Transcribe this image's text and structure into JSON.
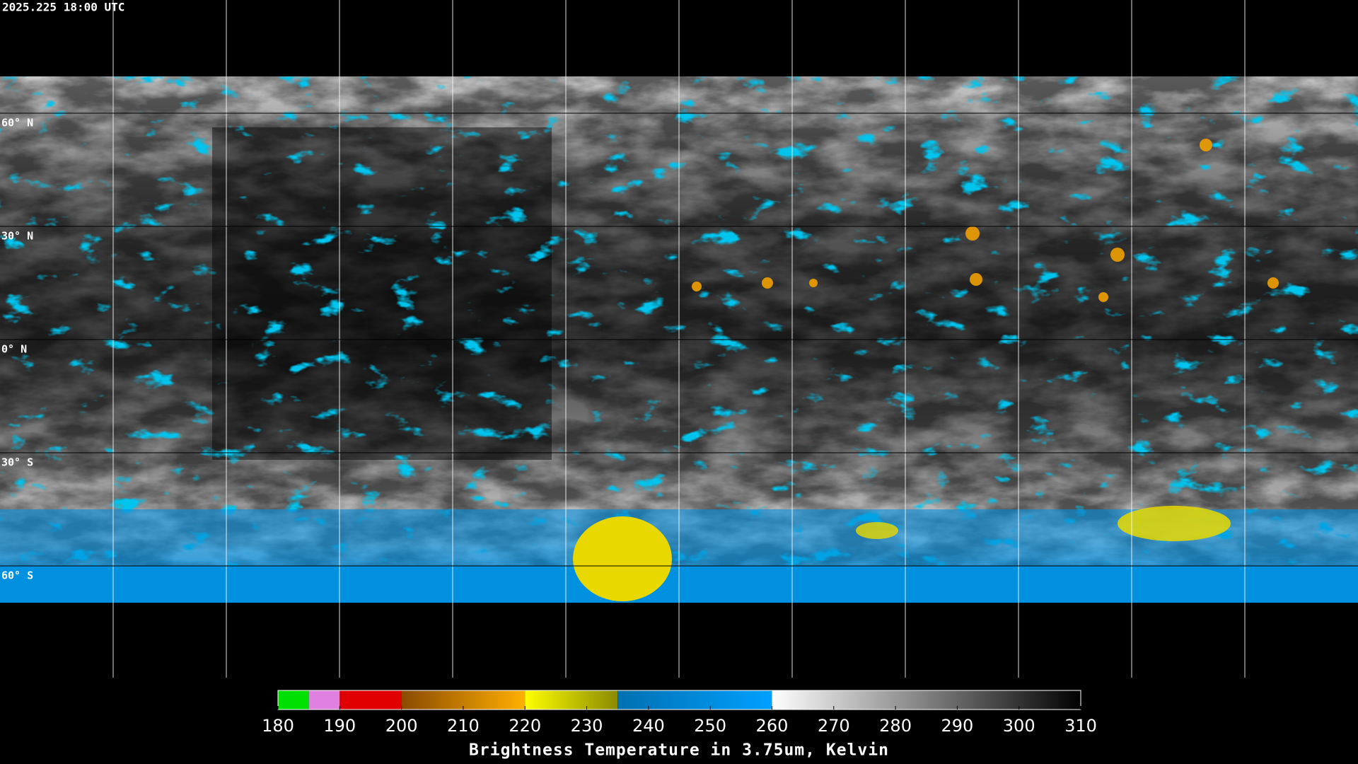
{
  "timestamp": "2025.225 18:00 UTC",
  "lat_labels": [
    "60° N",
    "30° N",
    "0° N",
    "30° S",
    "60° S"
  ],
  "colorbar": {
    "label": "Brightness Temperature in 3.75um, Kelvin",
    "range": [
      180,
      310
    ],
    "ticks": [
      180,
      190,
      200,
      210,
      220,
      230,
      240,
      250,
      260,
      270,
      280,
      290,
      300,
      310
    ],
    "segments": [
      {
        "from": 180,
        "to": 185,
        "colors": [
          "#00e000",
          "#00e000"
        ]
      },
      {
        "from": 185,
        "to": 190,
        "colors": [
          "#e080e0",
          "#e080e0"
        ]
      },
      {
        "from": 190,
        "to": 200,
        "colors": [
          "#e00000",
          "#e00000"
        ]
      },
      {
        "from": 200,
        "to": 220,
        "colors": [
          "#8a4a00",
          "#ffb000"
        ]
      },
      {
        "from": 220,
        "to": 235,
        "colors": [
          "#ffff00",
          "#8a8a00"
        ]
      },
      {
        "from": 235,
        "to": 260,
        "colors": [
          "#0070b0",
          "#00a0ff"
        ]
      },
      {
        "from": 260,
        "to": 310,
        "colors": [
          "#ffffff",
          "#000000"
        ]
      }
    ]
  }
}
